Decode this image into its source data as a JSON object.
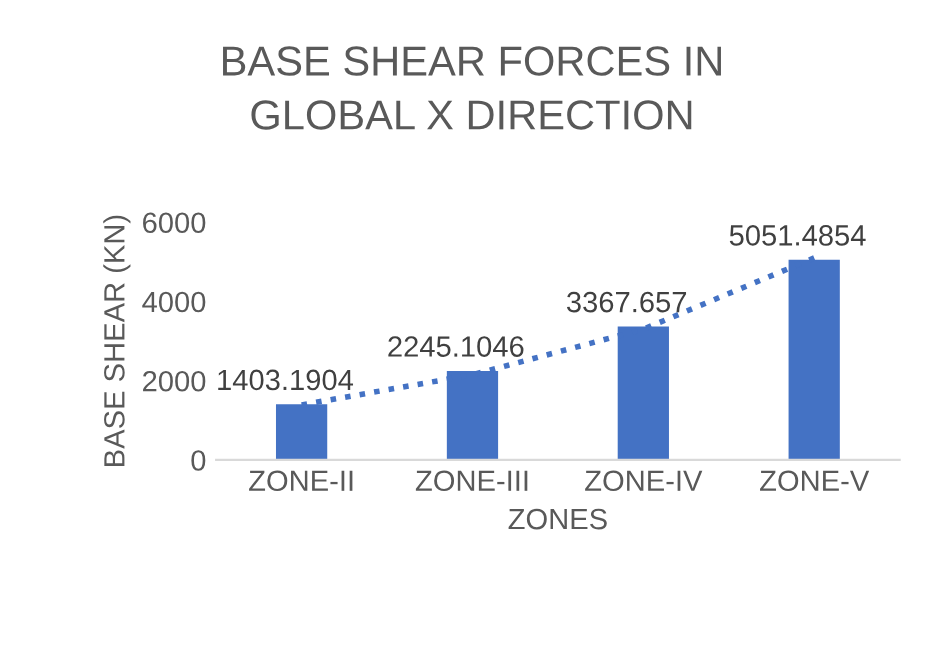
{
  "chart_data": {
    "type": "bar",
    "title": "BASE SHEAR FORCES IN\nGLOBAL X DIRECTION",
    "xlabel": "ZONES",
    "ylabel": "BASE SHEAR (KN)",
    "categories": [
      "ZONE-II",
      "ZONE-III",
      "ZONE-IV",
      "ZONE-V"
    ],
    "series": [
      {
        "color": "#4472c4",
        "values": [
          1403.1904,
          2245.1046,
          3367.657,
          5051.4854
        ],
        "value_labels": [
          "1403.1904",
          "2245.1046",
          "3367.657",
          "5051.4854"
        ]
      },
      {
        "type": "line",
        "color": "#4472c4",
        "line_style": "dotted",
        "x": [
          "ZONE-II",
          "ZONE-III",
          "ZONE-IV",
          "ZONE-V"
        ],
        "values": [
          1390,
          2150,
          3300,
          5100
        ]
      }
    ],
    "ylim": [
      0,
      6000
    ],
    "yticks": [
      0,
      2000,
      4000,
      6000
    ],
    "grid": false,
    "legend": false
  }
}
